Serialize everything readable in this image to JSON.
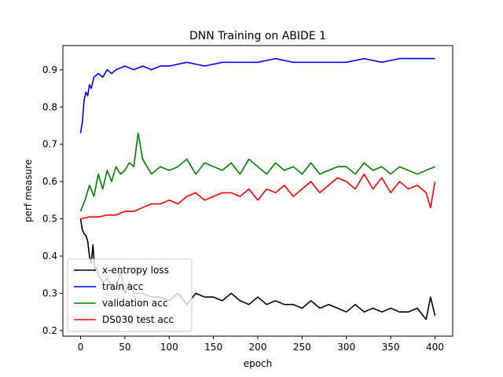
{
  "chart_data": {
    "type": "line",
    "title": "DNN Training on ABIDE 1",
    "xlabel": "epoch",
    "ylabel": "perf measure",
    "xlim": [
      -20,
      420
    ],
    "ylim": [
      0.185,
      0.965
    ],
    "xticks": [
      0,
      50,
      100,
      150,
      200,
      250,
      300,
      350,
      400
    ],
    "yticks": [
      0.2,
      0.3,
      0.4,
      0.5,
      0.6,
      0.7,
      0.8,
      0.9
    ],
    "grid": false,
    "legend_position": "lower-left",
    "series": [
      {
        "name": "x-entropy loss",
        "color": "#000000",
        "x": [
          0,
          2,
          4,
          6,
          8,
          10,
          12,
          14,
          16,
          18,
          20,
          25,
          30,
          35,
          40,
          45,
          50,
          55,
          60,
          70,
          80,
          90,
          100,
          110,
          120,
          130,
          140,
          150,
          160,
          170,
          180,
          190,
          200,
          210,
          220,
          230,
          240,
          250,
          260,
          270,
          280,
          290,
          300,
          310,
          320,
          330,
          340,
          350,
          360,
          370,
          380,
          390,
          395,
          400
        ],
        "values": [
          0.5,
          0.47,
          0.46,
          0.455,
          0.44,
          0.4,
          0.38,
          0.43,
          0.36,
          0.37,
          0.35,
          0.33,
          0.34,
          0.32,
          0.31,
          0.36,
          0.3,
          0.33,
          0.3,
          0.3,
          0.29,
          0.29,
          0.28,
          0.3,
          0.27,
          0.3,
          0.29,
          0.29,
          0.28,
          0.3,
          0.28,
          0.27,
          0.29,
          0.27,
          0.28,
          0.27,
          0.27,
          0.26,
          0.28,
          0.26,
          0.27,
          0.26,
          0.25,
          0.27,
          0.25,
          0.26,
          0.25,
          0.26,
          0.25,
          0.25,
          0.26,
          0.23,
          0.29,
          0.24
        ]
      },
      {
        "name": "train acc",
        "color": "#0000ff",
        "x": [
          0,
          2,
          4,
          6,
          8,
          10,
          12,
          15,
          20,
          25,
          30,
          35,
          40,
          50,
          60,
          70,
          80,
          90,
          100,
          120,
          140,
          160,
          180,
          200,
          220,
          240,
          260,
          280,
          300,
          320,
          340,
          360,
          380,
          400
        ],
        "values": [
          0.73,
          0.76,
          0.82,
          0.84,
          0.83,
          0.86,
          0.85,
          0.88,
          0.89,
          0.88,
          0.9,
          0.89,
          0.9,
          0.91,
          0.9,
          0.91,
          0.9,
          0.91,
          0.91,
          0.92,
          0.91,
          0.92,
          0.92,
          0.92,
          0.93,
          0.92,
          0.92,
          0.92,
          0.92,
          0.93,
          0.92,
          0.93,
          0.93,
          0.93
        ]
      },
      {
        "name": "validation acc",
        "color": "#008000",
        "x": [
          0,
          5,
          10,
          15,
          20,
          25,
          30,
          35,
          40,
          45,
          50,
          55,
          60,
          65,
          70,
          80,
          90,
          100,
          110,
          120,
          130,
          140,
          150,
          160,
          170,
          180,
          190,
          200,
          210,
          220,
          230,
          240,
          250,
          260,
          270,
          280,
          290,
          300,
          310,
          320,
          330,
          340,
          350,
          360,
          370,
          380,
          390,
          400
        ],
        "values": [
          0.52,
          0.55,
          0.59,
          0.56,
          0.62,
          0.58,
          0.63,
          0.6,
          0.64,
          0.62,
          0.63,
          0.65,
          0.64,
          0.73,
          0.66,
          0.62,
          0.64,
          0.63,
          0.64,
          0.66,
          0.62,
          0.65,
          0.64,
          0.63,
          0.65,
          0.62,
          0.66,
          0.64,
          0.62,
          0.65,
          0.63,
          0.64,
          0.62,
          0.65,
          0.62,
          0.63,
          0.64,
          0.64,
          0.62,
          0.65,
          0.63,
          0.64,
          0.62,
          0.64,
          0.63,
          0.62,
          0.63,
          0.64
        ]
      },
      {
        "name": "DS030 test acc",
        "color": "#ff0000",
        "x": [
          0,
          10,
          20,
          30,
          40,
          50,
          60,
          70,
          80,
          90,
          100,
          110,
          120,
          130,
          140,
          150,
          160,
          170,
          180,
          190,
          200,
          210,
          220,
          230,
          240,
          250,
          260,
          270,
          280,
          290,
          300,
          310,
          320,
          330,
          340,
          350,
          360,
          370,
          380,
          390,
          395,
          400
        ],
        "values": [
          0.5,
          0.505,
          0.505,
          0.51,
          0.51,
          0.52,
          0.52,
          0.53,
          0.54,
          0.54,
          0.55,
          0.54,
          0.56,
          0.57,
          0.55,
          0.56,
          0.57,
          0.57,
          0.56,
          0.58,
          0.55,
          0.58,
          0.57,
          0.59,
          0.56,
          0.58,
          0.6,
          0.57,
          0.59,
          0.61,
          0.6,
          0.58,
          0.62,
          0.58,
          0.61,
          0.57,
          0.6,
          0.58,
          0.59,
          0.57,
          0.53,
          0.6
        ]
      }
    ]
  }
}
